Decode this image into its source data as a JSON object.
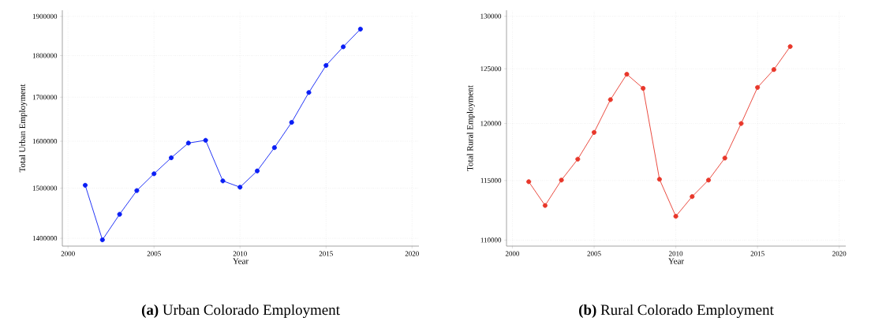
{
  "chart_data": [
    {
      "type": "line",
      "title": "**(a)** Urban Colorado Employment",
      "xlabel": "Year",
      "ylabel": "Total Urban Employment",
      "x": [
        2001,
        2002,
        2003,
        2004,
        2005,
        2006,
        2007,
        2008,
        2009,
        2010,
        2011,
        2012,
        2013,
        2014,
        2015,
        2016,
        2017
      ],
      "series": [
        {
          "color": "#0a1ef5",
          "values": [
            1506000,
            1397000,
            1447000,
            1495000,
            1530000,
            1564000,
            1596000,
            1602000,
            1515000,
            1502000,
            1536000,
            1586000,
            1642000,
            1711000,
            1776000,
            1822000,
            1867000
          ]
        }
      ],
      "xlim": [
        1999.67,
        2020.4
      ],
      "ylim": [
        1385000,
        1916000
      ],
      "xticks": [
        2000,
        2005,
        2010,
        2015,
        2020
      ],
      "yticks": [
        1400000,
        1500000,
        1600000,
        1700000,
        1800000,
        1900000
      ],
      "log": "y",
      "grid": true,
      "marker": "circle",
      "line_style": "solid"
    },
    {
      "type": "line",
      "title": "**(b)** Rural Colorado Employment",
      "xlabel": "Year",
      "ylabel": "Total Rural Employment",
      "x": [
        2001,
        2002,
        2003,
        2004,
        2005,
        2006,
        2007,
        2008,
        2009,
        2010,
        2011,
        2012,
        2013,
        2014,
        2015,
        2016,
        2017
      ],
      "series": [
        {
          "color": "#e8372a",
          "values": [
            114900,
            112880,
            115040,
            116850,
            119200,
            122150,
            124490,
            123190,
            115110,
            111970,
            113630,
            115040,
            116940,
            120000,
            123270,
            124920,
            127090
          ]
        }
      ],
      "xlim": [
        1999.64,
        2020.4
      ],
      "ylim": [
        109510,
        130580
      ],
      "xticks": [
        2000,
        2005,
        2010,
        2015,
        2020
      ],
      "yticks": [
        110000,
        115000,
        120000,
        125000,
        130000
      ],
      "log": "y",
      "grid": true,
      "marker": "circle",
      "line_style": "solid"
    }
  ]
}
